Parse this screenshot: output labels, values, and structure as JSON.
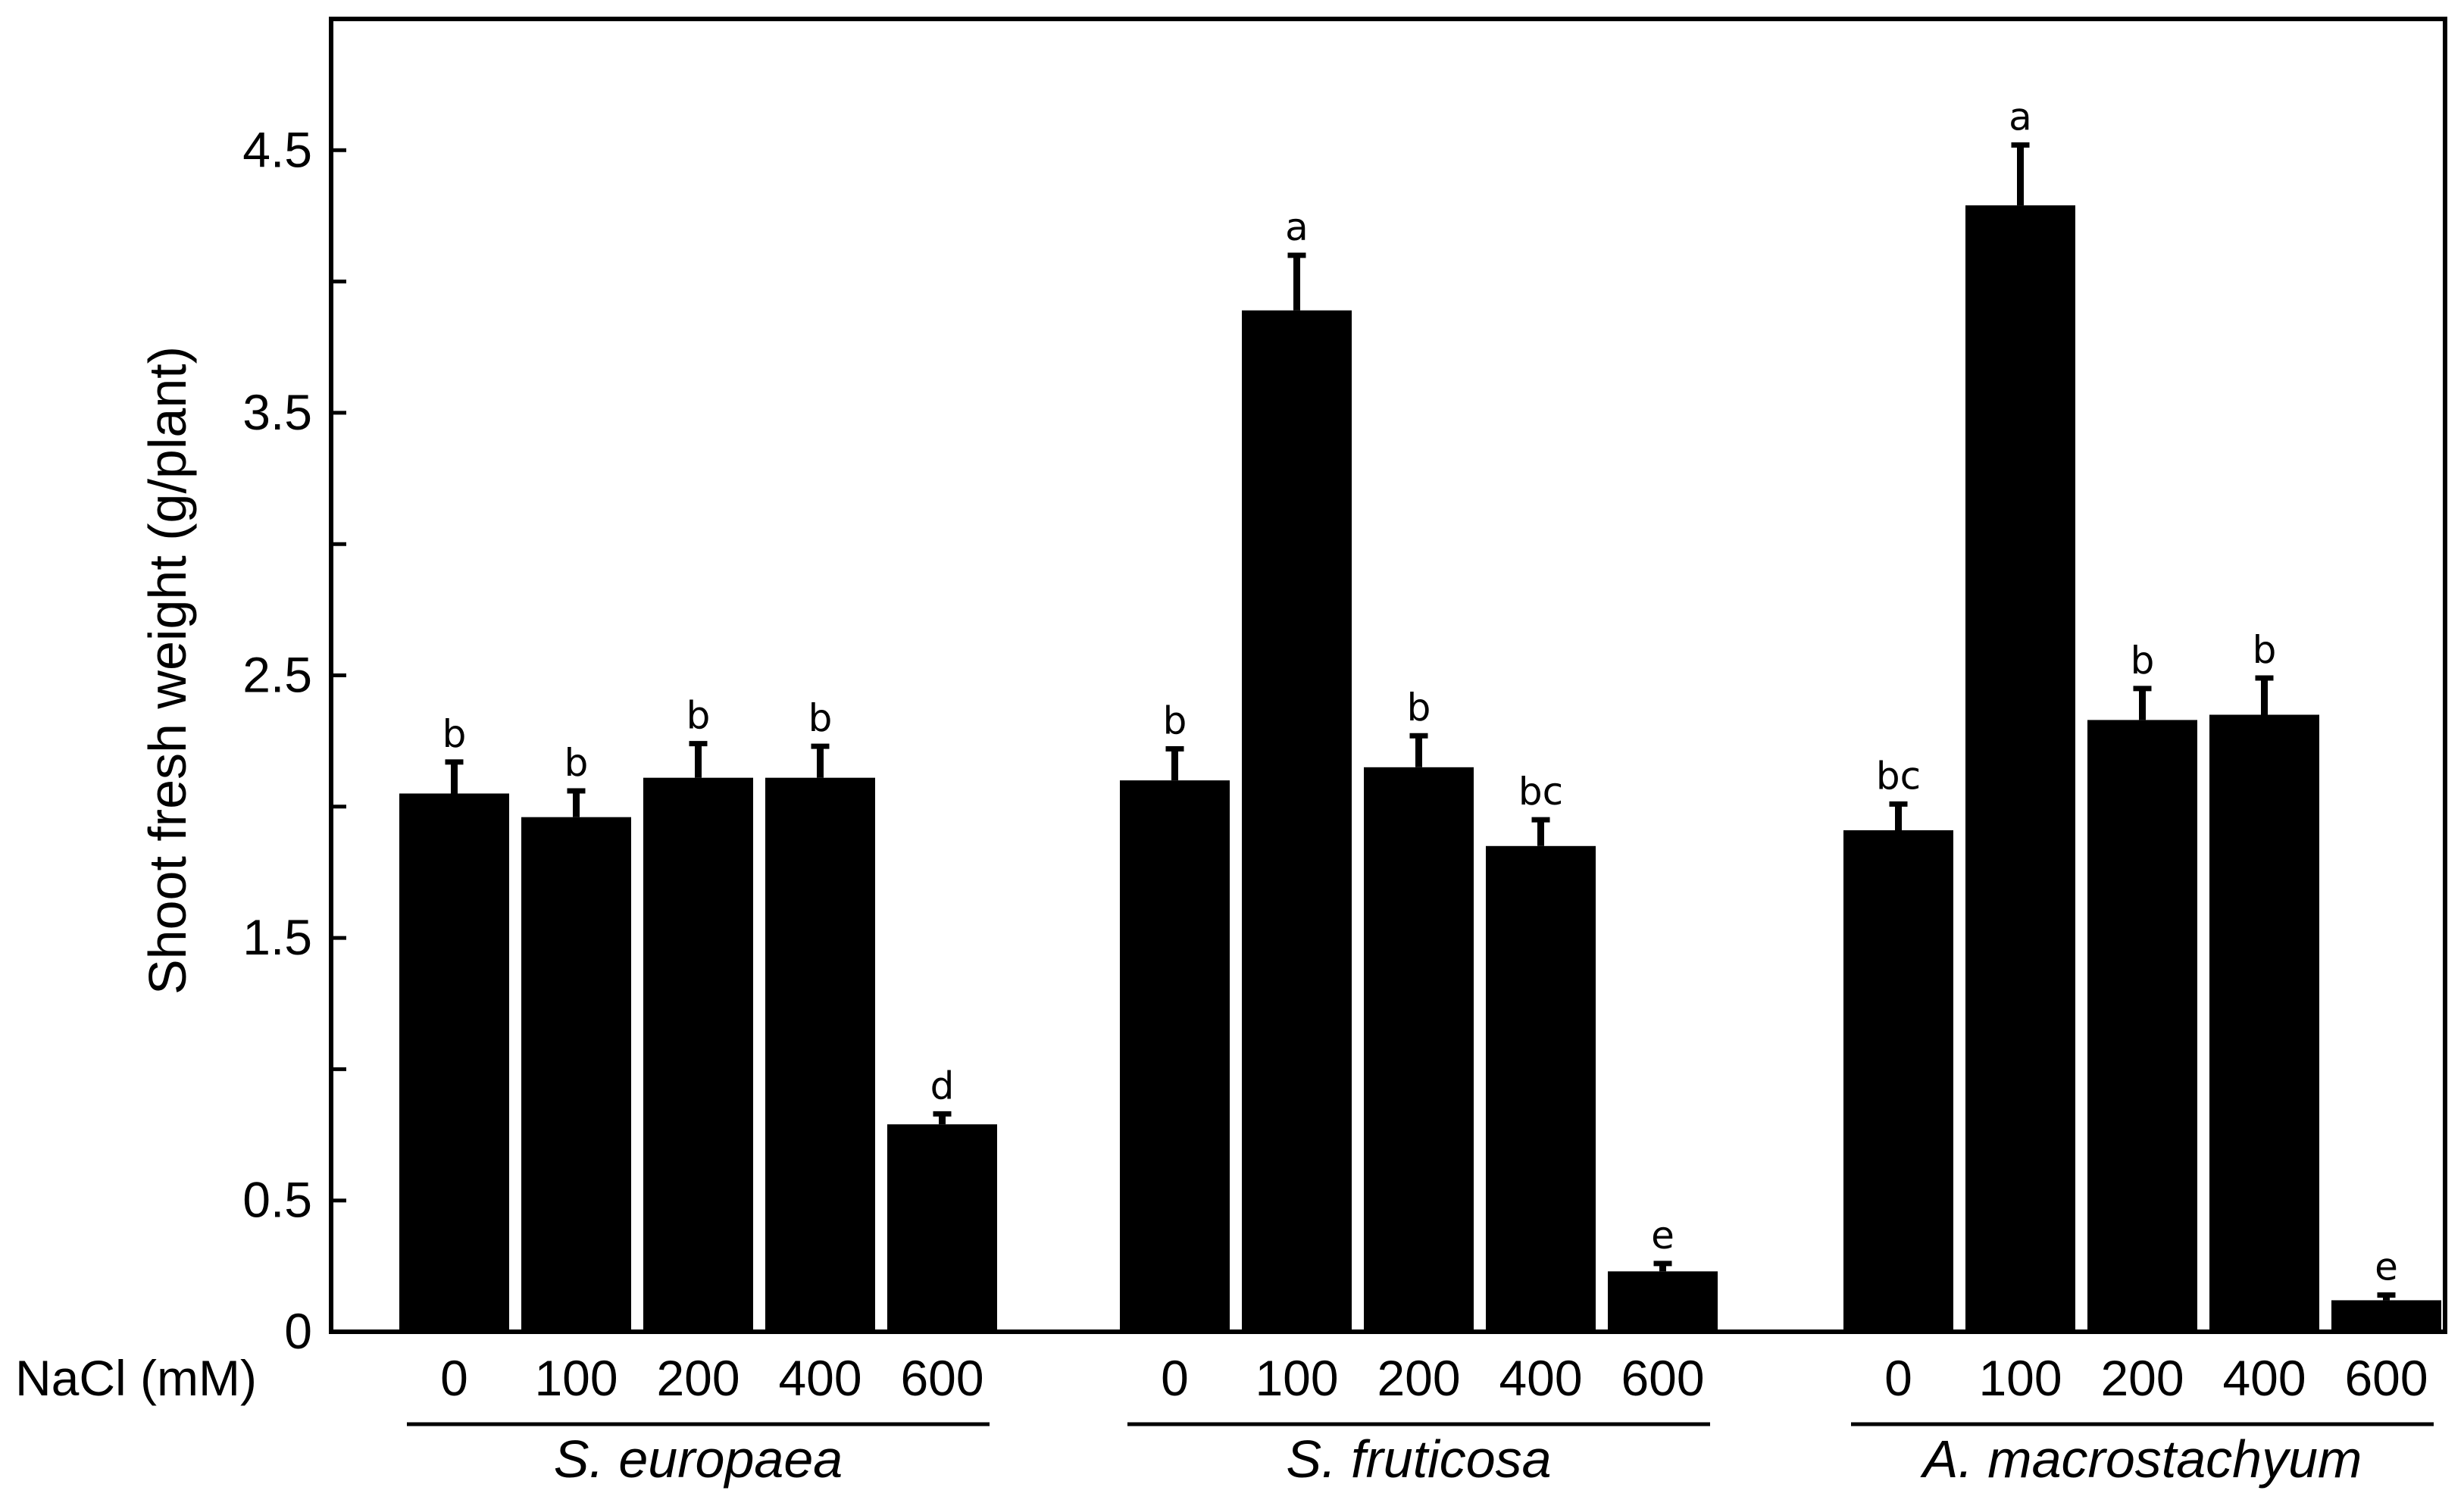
{
  "chart_data": {
    "type": "bar",
    "title": "",
    "xlabel": "NaCl (mM)",
    "ylabel": "Shoot  fresh weight (g/plant)",
    "ylim": [
      0,
      5.0
    ],
    "yticks": [
      0,
      0.5,
      1.0,
      1.5,
      2.0,
      2.5,
      3.0,
      3.5,
      4.0,
      4.5
    ],
    "ytick_labels": [
      "0",
      "0.5",
      "",
      "1.5",
      "",
      "2.5",
      "",
      "3.5",
      "",
      "4.5"
    ],
    "x_axis_label": "NaCl (mM)",
    "categories": [
      "0",
      "100",
      "200",
      "400",
      "600"
    ],
    "groups": [
      {
        "name": "S. europaea",
        "values": [
          2.05,
          1.96,
          2.11,
          2.11,
          0.79
        ],
        "errors": [
          0.12,
          0.1,
          0.13,
          0.12,
          0.04
        ],
        "letters": [
          "b",
          "b",
          "b",
          "b",
          "d"
        ]
      },
      {
        "name": "S. fruticosa",
        "values": [
          2.1,
          3.89,
          2.15,
          1.85,
          0.23
        ],
        "errors": [
          0.12,
          0.21,
          0.12,
          0.1,
          0.03
        ],
        "letters": [
          "b",
          "a",
          "b",
          "bc",
          "e"
        ]
      },
      {
        "name": "A. macrostachyum",
        "values": [
          1.91,
          4.29,
          2.33,
          2.35,
          0.12
        ],
        "errors": [
          0.1,
          0.23,
          0.12,
          0.14,
          0.02
        ],
        "letters": [
          "bc",
          "a",
          "b",
          "b",
          "e"
        ]
      }
    ],
    "bar_color": "#000000",
    "grid": false
  }
}
